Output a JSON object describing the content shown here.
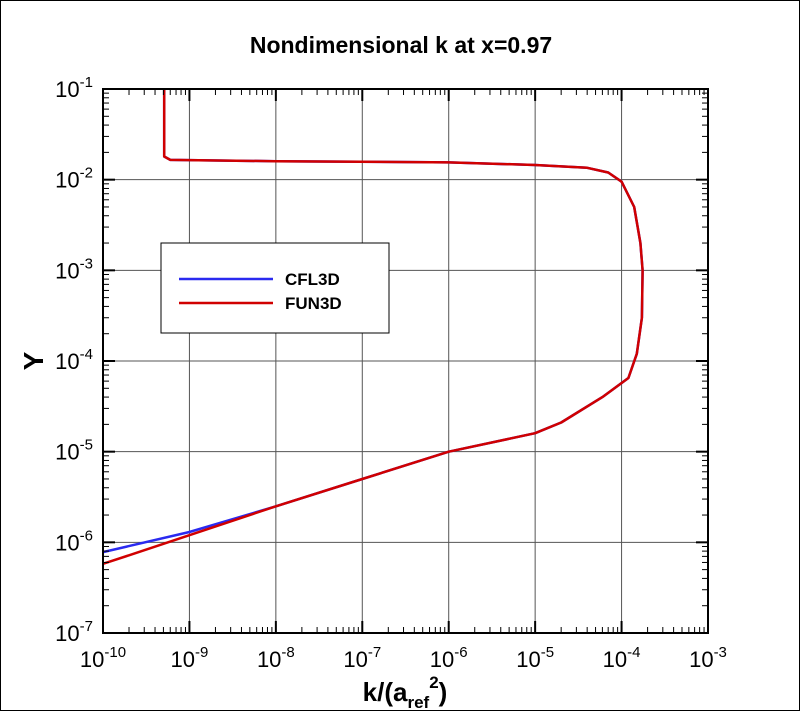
{
  "chart_data": {
    "type": "line",
    "title": "Nondimensional k at x=0.97",
    "xlabel": {
      "base": "k/(a",
      "sub": "ref",
      "sup": "2",
      "tail": ")"
    },
    "ylabel": "Y",
    "xscale": "log",
    "yscale": "log",
    "xlim": [
      1e-10,
      0.001
    ],
    "ylim": [
      1e-07,
      0.1
    ],
    "grid": true,
    "legend_position": "upper-left (inside)",
    "x_ticks": [
      {
        "exp": "-10"
      },
      {
        "exp": "-9"
      },
      {
        "exp": "-8"
      },
      {
        "exp": "-7"
      },
      {
        "exp": "-6"
      },
      {
        "exp": "-5"
      },
      {
        "exp": "-4"
      },
      {
        "exp": "-3"
      }
    ],
    "y_ticks": [
      {
        "exp": "-1"
      },
      {
        "exp": "-2"
      },
      {
        "exp": "-3"
      },
      {
        "exp": "-4"
      },
      {
        "exp": "-5"
      },
      {
        "exp": "-6"
      },
      {
        "exp": "-7"
      }
    ],
    "tick_base": "10",
    "series": [
      {
        "name": "CFL3D",
        "color": "#2a2af0",
        "points": [
          [
            5.1e-10,
            0.1
          ],
          [
            5.1e-10,
            0.018
          ],
          [
            6e-10,
            0.0165
          ],
          [
            1e-08,
            0.016
          ],
          [
            1e-06,
            0.0155
          ],
          [
            1e-05,
            0.0145
          ],
          [
            4e-05,
            0.0135
          ],
          [
            7e-05,
            0.012
          ],
          [
            0.0001,
            0.0095
          ],
          [
            0.00014,
            0.005
          ],
          [
            0.000165,
            0.002
          ],
          [
            0.000175,
            0.001
          ],
          [
            0.000172,
            0.0003
          ],
          [
            0.00015,
            0.00012
          ],
          [
            0.00012,
            6.5e-05
          ],
          [
            6e-05,
            4e-05
          ],
          [
            2e-05,
            2.1e-05
          ],
          [
            1e-05,
            1.6e-05
          ],
          [
            1e-06,
            1e-05
          ],
          [
            1e-07,
            5e-06
          ],
          [
            1e-08,
            2.5e-06
          ],
          [
            1e-09,
            1.3e-06
          ],
          [
            1e-10,
            7.8e-07
          ]
        ]
      },
      {
        "name": "FUN3D",
        "color": "#d00000",
        "points": [
          [
            5.1e-10,
            0.1
          ],
          [
            5.1e-10,
            0.018
          ],
          [
            6e-10,
            0.0165
          ],
          [
            1e-08,
            0.016
          ],
          [
            1e-06,
            0.0155
          ],
          [
            1e-05,
            0.0145
          ],
          [
            4e-05,
            0.0135
          ],
          [
            7e-05,
            0.012
          ],
          [
            0.0001,
            0.0095
          ],
          [
            0.00014,
            0.005
          ],
          [
            0.000165,
            0.002
          ],
          [
            0.000175,
            0.001
          ],
          [
            0.000172,
            0.0003
          ],
          [
            0.00015,
            0.00012
          ],
          [
            0.00012,
            6.5e-05
          ],
          [
            6e-05,
            4e-05
          ],
          [
            2e-05,
            2.1e-05
          ],
          [
            1e-05,
            1.6e-05
          ],
          [
            1e-06,
            1e-05
          ],
          [
            1e-07,
            5e-06
          ],
          [
            1e-08,
            2.5e-06
          ],
          [
            1e-09,
            1.2e-06
          ],
          [
            2e-10,
            7.2e-07
          ],
          [
            1e-10,
            5.8e-07
          ]
        ]
      }
    ]
  }
}
